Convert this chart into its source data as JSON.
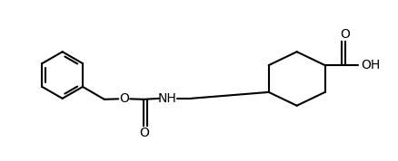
{
  "background_color": "#ffffff",
  "line_color": "#000000",
  "line_width": 1.5,
  "figsize": [
    4.38,
    1.78
  ],
  "dpi": 100,
  "xlim": [
    0,
    8.76
  ],
  "ylim": [
    0,
    3.56
  ]
}
